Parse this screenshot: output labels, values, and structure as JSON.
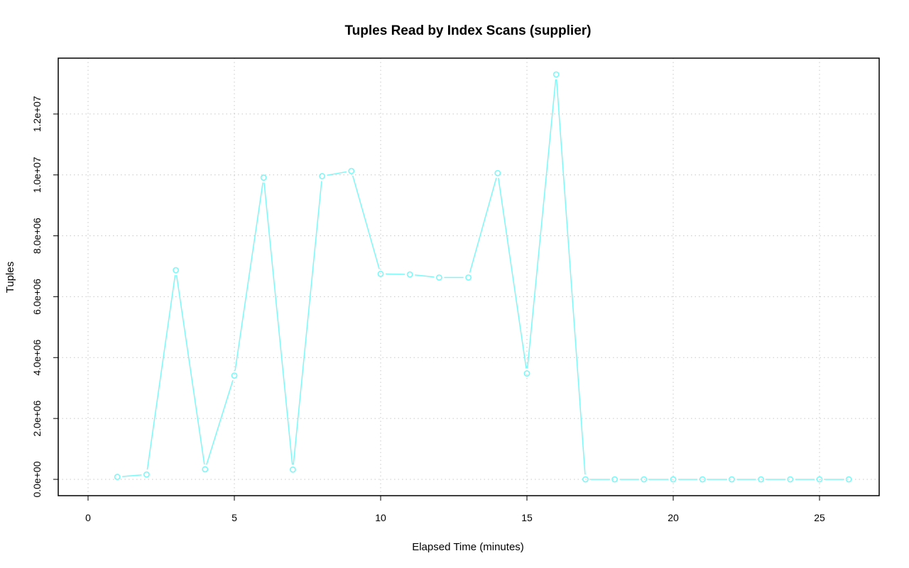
{
  "chart_data": {
    "type": "line",
    "title": "Tuples Read by Index Scans (supplier)",
    "xlabel": "Elapsed Time (minutes)",
    "ylabel": "Tuples",
    "xlim": [
      0,
      26
    ],
    "ylim": [
      0,
      13300000
    ],
    "x_ticks": [
      0,
      5,
      10,
      15,
      20,
      25
    ],
    "x_tick_labels": [
      "0",
      "5",
      "10",
      "15",
      "20",
      "25"
    ],
    "y_ticks": [
      0,
      2000000,
      4000000,
      6000000,
      8000000,
      10000000,
      12000000
    ],
    "y_tick_labels": [
      "0.0e+00",
      "2.0e+06",
      "4.0e+06",
      "6.0e+06",
      "8.0e+06",
      "1.0e+07",
      "1.2e+07"
    ],
    "grid": true,
    "series": [
      {
        "color": "#7ff7f7",
        "marker": "circle",
        "x": [
          1,
          2,
          3,
          4,
          5,
          6,
          7,
          8,
          9,
          10,
          11,
          12,
          13,
          14,
          15,
          16,
          17,
          18,
          19,
          20,
          21,
          22,
          23,
          24,
          25,
          26
        ],
        "values": [
          80000,
          160000,
          6870000,
          330000,
          3410000,
          9910000,
          320000,
          9960000,
          10130000,
          6750000,
          6730000,
          6630000,
          6630000,
          10060000,
          3480000,
          13300000,
          0,
          0,
          0,
          0,
          0,
          0,
          0,
          0,
          0,
          0
        ]
      }
    ]
  }
}
